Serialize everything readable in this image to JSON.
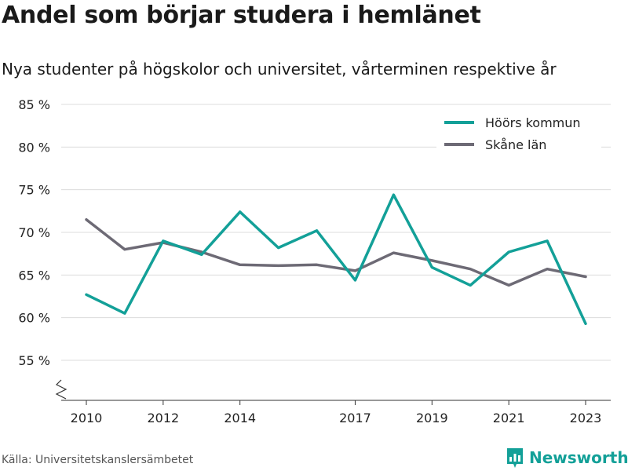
{
  "title": "Andel som börjar studera i hemlänet",
  "subtitle": "Nya studenter på högskolor och universitet, vårterminen respektive år",
  "source": "Källa: Universitetskanslersämbetet",
  "brand": {
    "name": "Newsworthy",
    "color": "#13a098"
  },
  "chart_data": {
    "type": "line",
    "x": [
      2010,
      2011,
      2012,
      2013,
      2014,
      2015,
      2016,
      2017,
      2018,
      2019,
      2020,
      2021,
      2022,
      2023
    ],
    "series": [
      {
        "name": "Höörs kommun",
        "color": "#13a098",
        "values": [
          62.7,
          60.5,
          69.0,
          67.4,
          72.4,
          68.2,
          70.2,
          64.4,
          74.4,
          65.9,
          63.8,
          67.7,
          69.0,
          59.3
        ]
      },
      {
        "name": "Skåne län",
        "color": "#6d6a75",
        "values": [
          71.5,
          68.0,
          68.8,
          67.7,
          66.2,
          66.1,
          66.2,
          65.5,
          67.6,
          66.7,
          65.7,
          63.8,
          65.7,
          64.8
        ]
      }
    ],
    "x_ticks": [
      2010,
      2012,
      2014,
      2017,
      2019,
      2021,
      2023
    ],
    "x_tick_labels": [
      "2010",
      "2012",
      "2014",
      "2017",
      "2019",
      "2021",
      "2023"
    ],
    "y_ticks": [
      55,
      60,
      65,
      70,
      75,
      80,
      85
    ],
    "y_tick_labels": [
      "55 %",
      "60 %",
      "65 %",
      "70 %",
      "75 %",
      "80 %",
      "85 %"
    ],
    "ylim": [
      51,
      85
    ],
    "xlabel": "",
    "ylabel": "",
    "grid": true,
    "legend_position": "top-right",
    "axis_break": true
  }
}
